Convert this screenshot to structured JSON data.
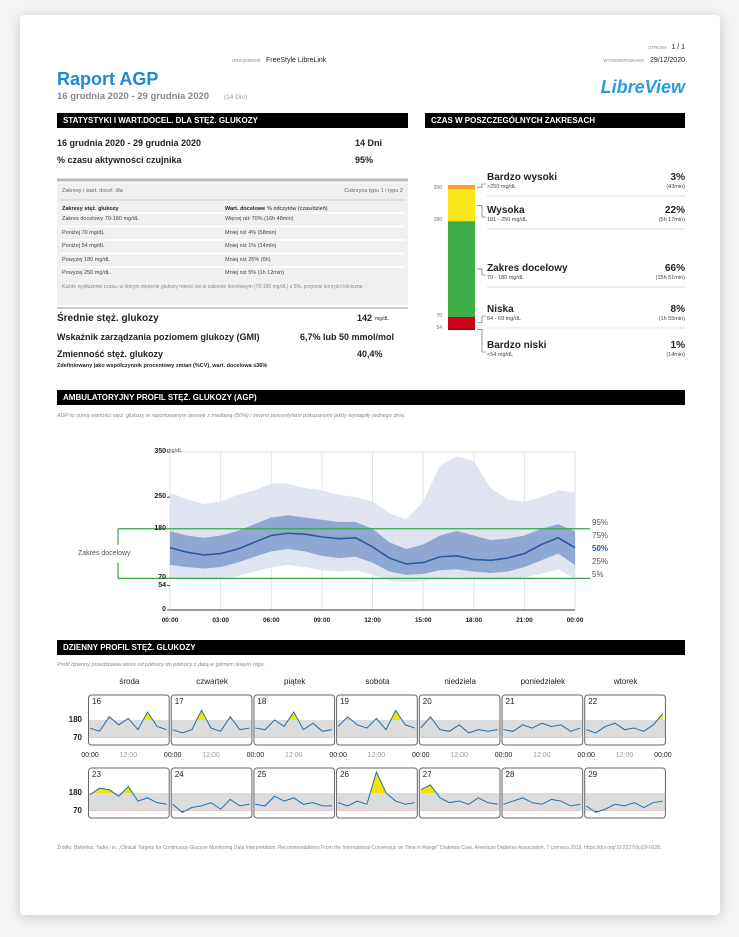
{
  "header": {
    "device_label": "URZĄDZENIE",
    "device": "FreeStyle LibreLink",
    "page_label": "STRONA",
    "page": "1 / 1",
    "generated_label": "WYGENEROWANO",
    "generated": "29/12/2020",
    "title": "Raport AGP",
    "date_range": "16 grudnia 2020 - 29 grudnia 2020",
    "days": "(14 Dni)",
    "logo": "LibreView"
  },
  "statistics": {
    "heading": "STATYSTYKI I WART.DOCEL. DLA STĘŻ. GLUKOZY",
    "period": "16 grudnia 2020 - 29 grudnia 2020",
    "period_days": "14 Dni",
    "sensor_label": "% czasu aktywności czujnika",
    "sensor_value": "95%",
    "targets": {
      "label": "Zakresy i wart. docel. dla",
      "type": "Cukrzyca typu 1 i typu 2",
      "col1": "Zakresy stęż. glukozy",
      "col2": "Wart. docelowe",
      "col2_note": "% odczytów (czas/dzień)",
      "rows": [
        [
          "Zakres docelowy 70-180 mg/dL",
          "Więcej niż 70% (16h 48min)"
        ],
        [
          "Poniżej 70 mg/dL",
          "Mniej niż 4% (58min)"
        ],
        [
          "Poniżej 54 mg/dL",
          "Mniej niż 1% (14min)"
        ],
        [
          "Powyżej 180 mg/dL",
          "Mniej niż 25% (6h)"
        ],
        [
          "Powyżej 250 mg/dL",
          "Mniej niż 5% (1h 12min)"
        ]
      ],
      "note": "Każde wydłużenie czasu, w którym stężenie glukozy mieści się w zakresie docelowym (70-180 mg/dL) o 5%, przynosi korzyści kliniczne."
    },
    "mean_label": "Średnie stęż. glukozy",
    "mean_value": "142",
    "mean_unit": "mg/dL",
    "gmi_label": "Wskaźnik zarządzania poziomem glukozy (GMI)",
    "gmi_value": "6,7% lub 50 mmol/mol",
    "cv_label": "Zmienność stęż. glukozy",
    "cv_value": "40,4%",
    "cv_note": "Zdefiniowany jako współczynnik procentowy zmian (%CV), wart. docelowa ≤36%"
  },
  "time_in_ranges": {
    "heading": "CZAS W POSZCZEGÓLNYCH ZAKRESACH",
    "boundaries": [
      250,
      180,
      70,
      54
    ],
    "ranges": [
      {
        "name": "Bardzo wysoki",
        "range": ">250 mg/dL",
        "value": 3,
        "value_label": "3%",
        "duration": "(43min)",
        "color": "#f5a623"
      },
      {
        "name": "Wysoka",
        "range": "181 - 250 mg/dL",
        "value": 22,
        "value_label": "22%",
        "duration": "(5h 17min)",
        "color": "#f8e71c"
      },
      {
        "name": "Zakres docelowy",
        "range": "70 - 180 mg/dL",
        "value": 66,
        "value_label": "66%",
        "duration": "(15h 51min)",
        "color": "#3fae49"
      },
      {
        "name": "Niska",
        "range": "54 - 69 mg/dL",
        "value": 8,
        "value_label": "8%",
        "duration": "(1h 55min)",
        "color": "#d0021b"
      },
      {
        "name": "Bardzo niski",
        "range": "<54 mg/dL",
        "value": 1,
        "value_label": "1%",
        "duration": "(14min)",
        "color": "#8b0000"
      }
    ]
  },
  "agp": {
    "heading": "AMBULATORYJNY PROFIL STĘŻ. GLUKOZY (AGP)",
    "description": "AGP to suma wartości stęż. glukozy w raportowanym okresie z medianą (50%) i innymi percentylami pokazanymi jakby wystąpiły jednego dnia.",
    "chart_data": {
      "type": "line",
      "y_unit": "mg/dL",
      "target_label": "Zakres docelowy",
      "x": [
        0,
        1,
        2,
        3,
        4,
        5,
        6,
        7,
        8,
        9,
        10,
        11,
        12,
        13,
        14,
        15,
        16,
        17,
        18,
        19,
        20,
        21,
        22,
        23,
        24
      ],
      "xlim": [
        0,
        24
      ],
      "xticks": [
        {
          "value": 0,
          "label": "00:00"
        },
        {
          "value": 3,
          "label": "03:00"
        },
        {
          "value": 6,
          "label": "06:00"
        },
        {
          "value": 9,
          "label": "09:00"
        },
        {
          "value": 12,
          "label": "12:00"
        },
        {
          "value": 15,
          "label": "15:00"
        },
        {
          "value": 18,
          "label": "18:00"
        },
        {
          "value": 21,
          "label": "21:00"
        },
        {
          "value": 24,
          "label": "00:00"
        }
      ],
      "ylim": [
        0,
        350
      ],
      "yticks": [
        0,
        54,
        70,
        180,
        250,
        350
      ],
      "series": [
        {
          "name": "95%",
          "color": "#dfe4f0",
          "values": [
            260,
            245,
            235,
            240,
            255,
            265,
            280,
            280,
            270,
            265,
            255,
            250,
            240,
            215,
            200,
            240,
            320,
            340,
            330,
            270,
            245,
            240,
            250,
            265,
            260
          ]
        },
        {
          "name": "75%",
          "color": "#8fa8d3",
          "values": [
            175,
            165,
            160,
            165,
            175,
            190,
            205,
            210,
            205,
            200,
            195,
            195,
            180,
            150,
            135,
            145,
            165,
            175,
            165,
            155,
            158,
            165,
            180,
            190,
            175
          ]
        },
        {
          "name": "50%",
          "color": "#2b5aa0",
          "values": [
            138,
            128,
            122,
            125,
            135,
            150,
            165,
            170,
            168,
            162,
            158,
            160,
            140,
            115,
            102,
            105,
            118,
            120,
            112,
            110,
            115,
            125,
            145,
            160,
            138
          ]
        },
        {
          "name": "25%",
          "color": "#8fa8d3",
          "values": [
            100,
            95,
            92,
            95,
            105,
            118,
            130,
            135,
            130,
            120,
            115,
            118,
            105,
            85,
            78,
            80,
            88,
            90,
            85,
            82,
            85,
            95,
            110,
            125,
            100
          ]
        },
        {
          "name": "5%",
          "color": "#dfe4f0",
          "values": [
            70,
            68,
            65,
            68,
            75,
            85,
            95,
            100,
            95,
            88,
            85,
            88,
            78,
            65,
            62,
            64,
            70,
            72,
            68,
            65,
            68,
            72,
            80,
            90,
            70
          ]
        }
      ]
    }
  },
  "daily": {
    "heading": "DZIENNY PROFIL STĘŻ. GLUKOZY",
    "description": "Profil dzienny przedstawia okres od północy do północy z datą w górnym lewym rogu.",
    "weekdays": [
      "środa",
      "czwartek",
      "piątek",
      "sobota",
      "niedziela",
      "poniedziałek",
      "wtorek"
    ],
    "chart_data": {
      "type": "line",
      "color": "#1f6fb4",
      "x": [
        0,
        3,
        6,
        9,
        12,
        15,
        18,
        21,
        24
      ],
      "xlim": [
        0,
        24
      ],
      "xticks": [
        {
          "value": 0,
          "label": "00:00"
        },
        {
          "value": 12,
          "label": "12:00"
        },
        {
          "value": 24,
          "label": "00:00"
        }
      ],
      "ylim": [
        25,
        335
      ],
      "yticks": [
        70,
        180
      ],
      "days": [
        {
          "label": "16",
          "values": [
            130,
            110,
            200,
            150,
            190,
            120,
            230,
            140,
            120
          ]
        },
        {
          "label": "17",
          "values": [
            120,
            100,
            120,
            240,
            130,
            110,
            200,
            120,
            130
          ]
        },
        {
          "label": "18",
          "values": [
            130,
            120,
            180,
            140,
            230,
            120,
            160,
            110,
            120
          ]
        },
        {
          "label": "19",
          "values": [
            140,
            200,
            150,
            130,
            190,
            120,
            240,
            150,
            130
          ]
        },
        {
          "label": "20",
          "values": [
            130,
            200,
            120,
            110,
            150,
            100,
            120,
            110,
            120
          ]
        },
        {
          "label": "21",
          "values": [
            120,
            110,
            150,
            130,
            160,
            140,
            150,
            110,
            130
          ]
        },
        {
          "label": "22",
          "values": [
            120,
            100,
            140,
            160,
            120,
            130,
            110,
            150,
            220
          ]
        },
        {
          "label": "23",
          "values": [
            170,
            210,
            200,
            160,
            220,
            130,
            150,
            120,
            110
          ]
        },
        {
          "label": "24",
          "values": [
            110,
            60,
            90,
            100,
            120,
            80,
            140,
            100,
            110
          ]
        },
        {
          "label": "25",
          "values": [
            110,
            100,
            160,
            130,
            150,
            110,
            120,
            100,
            100
          ]
        },
        {
          "label": "26",
          "values": [
            120,
            100,
            130,
            110,
            310,
            180,
            130,
            110,
            120
          ]
        },
        {
          "label": "27",
          "values": [
            200,
            230,
            150,
            120,
            130,
            110,
            150,
            120,
            110
          ]
        },
        {
          "label": "28",
          "values": [
            110,
            130,
            150,
            120,
            110,
            140,
            130,
            100,
            110
          ]
        },
        {
          "label": "29",
          "values": [
            100,
            60,
            80,
            110,
            100,
            120,
            90,
            120,
            130
          ]
        }
      ]
    }
  },
  "footer": {
    "source": "Źródło: Battelino, Tadej i in. „Clinical Targets for Continuous Glucose Monitoring Data Interpretation: Recommendations From the International Consensus on Time in Range\" Diabetes Care, American Diabetes Association. 7 czerwca 2019. https://doi.org/10.2337/dci19-0028."
  }
}
